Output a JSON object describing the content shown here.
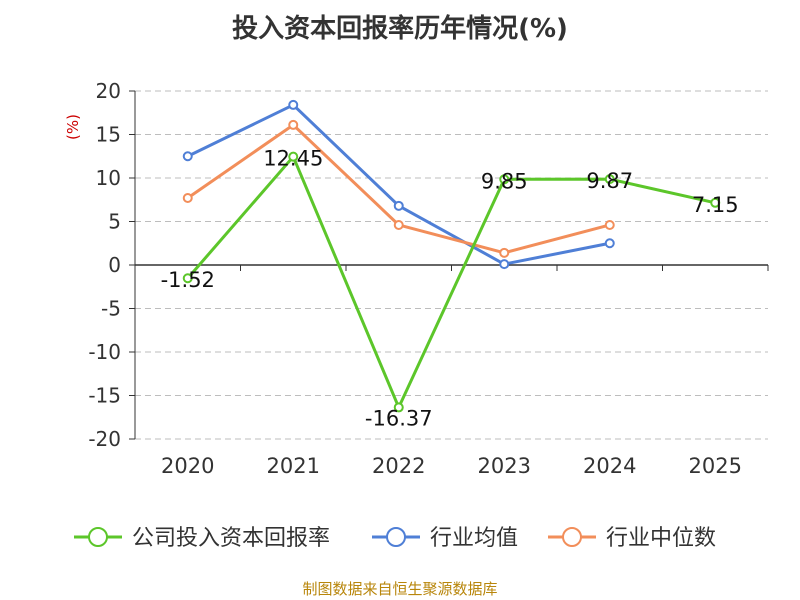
{
  "chart_data": {
    "type": "line",
    "title": "投入资本回报率历年情况(%)",
    "ylabel": "(%)",
    "xlabel": "",
    "categories": [
      "2020",
      "2021",
      "2022",
      "2023",
      "2024",
      "2025"
    ],
    "ylim": [
      -20,
      20
    ],
    "yticks": [
      20,
      15,
      10,
      5,
      0,
      -5,
      -10,
      -15,
      -20
    ],
    "grid": true,
    "legend_position": "bottom",
    "series": [
      {
        "name": "公司投入资本回报率",
        "color": "#5cc62a",
        "values": [
          -1.52,
          12.45,
          -16.37,
          9.85,
          9.87,
          7.15
        ],
        "labels": [
          "-1.52",
          "12.45",
          "-16.37",
          "9.85",
          "9.87",
          "7.15"
        ]
      },
      {
        "name": "行业均值",
        "color": "#4f7fd6",
        "values": [
          12.5,
          18.4,
          6.8,
          0.1,
          2.5,
          null
        ]
      },
      {
        "name": "行业中位数",
        "color": "#f28e5a",
        "values": [
          7.7,
          16.1,
          4.6,
          1.4,
          4.6,
          null
        ]
      }
    ]
  },
  "source": "制图数据来自恒生聚源数据库"
}
